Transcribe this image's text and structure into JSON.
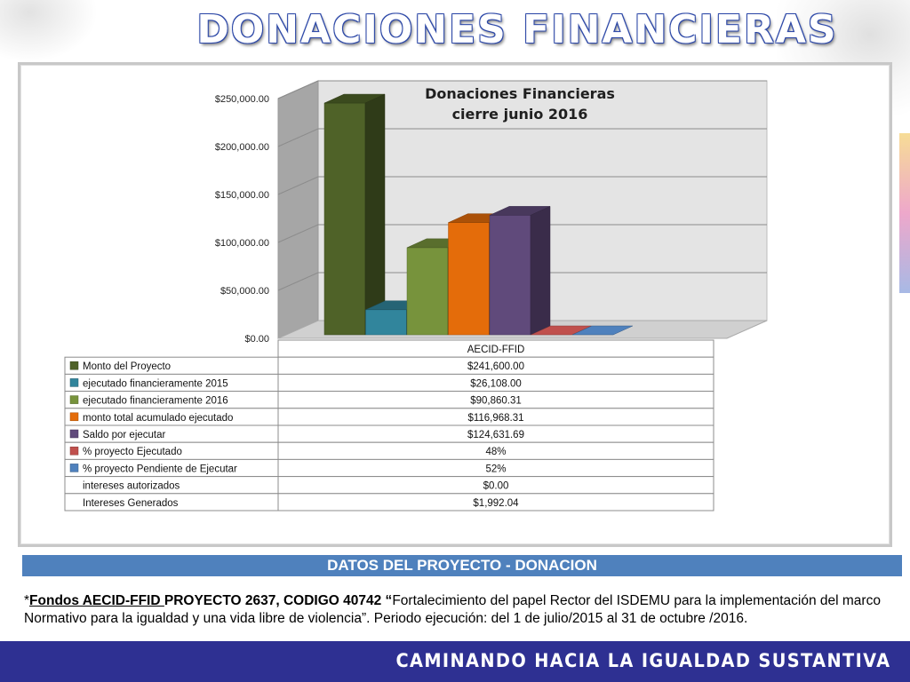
{
  "slide": {
    "title": "DONACIONES FINANCIERAS",
    "datos_header": "DATOS DEL PROYECTO -  DONACION",
    "description": {
      "prefix": "*",
      "fund_label": "Fondos AECID-FFID ",
      "project_label": "PROYECTO 2637, CODIGO 40742 “",
      "body": "Fortalecimiento del papel Rector del  ISDEMU para la implementación del marco Normativo para la igualdad y una vida libre de violencia”. Periodo ejecución: del 1 de julio/2015 al 31 de octubre /2016."
    },
    "footer": "CAMINANDO HACIA LA IGUALDAD SUSTANTIVA"
  },
  "chart_data": {
    "type": "bar",
    "title": "Donaciones Financieras cierre junio 2016",
    "title_lines": [
      "Donaciones Financieras",
      "cierre junio 2016"
    ],
    "categories": [
      "AECID-FFID"
    ],
    "ylim": [
      0,
      250000
    ],
    "y_ticks": [
      "$250,000.00",
      "$200,000.00",
      "$150,000.00",
      "$100,000.00",
      "$50,000.00",
      "$0.00"
    ],
    "y_tick_values": [
      250000,
      200000,
      150000,
      100000,
      50000,
      0
    ],
    "grid": true,
    "series": [
      {
        "name": "Monto  del Proyecto",
        "values": [
          241600.0
        ],
        "label": "$241,600.00",
        "color": "#4f6228",
        "charted": true
      },
      {
        "name": "ejecutado financieramente 2015",
        "values": [
          26108.0
        ],
        "label": "$26,108.00",
        "color": "#31859c",
        "charted": true
      },
      {
        "name": "ejecutado financieramente 2016",
        "values": [
          90860.31
        ],
        "label": "$90,860.31",
        "color": "#77933c",
        "charted": true
      },
      {
        "name": "monto total acumulado ejecutado",
        "values": [
          116968.31
        ],
        "label": "$116,968.31",
        "color": "#e46c0a",
        "charted": true
      },
      {
        "name": "Saldo por ejecutar",
        "values": [
          124631.69
        ],
        "label": "$124,631.69",
        "color": "#604a7b",
        "charted": true
      },
      {
        "name": "% proyecto Ejecutado",
        "values": [
          48
        ],
        "label": "48%",
        "color": "#c0504d",
        "charted": true
      },
      {
        "name": "% proyecto Pendiente de Ejecutar",
        "values": [
          52
        ],
        "label": "52%",
        "color": "#4f81bd",
        "charted": true
      },
      {
        "name": "intereses autorizados",
        "values": [
          0.0
        ],
        "label": "$0.00",
        "color": null,
        "charted": false
      },
      {
        "name": "Intereses Generados",
        "values": [
          1992.04
        ],
        "label": "$1,992.04",
        "color": null,
        "charted": false
      }
    ]
  }
}
